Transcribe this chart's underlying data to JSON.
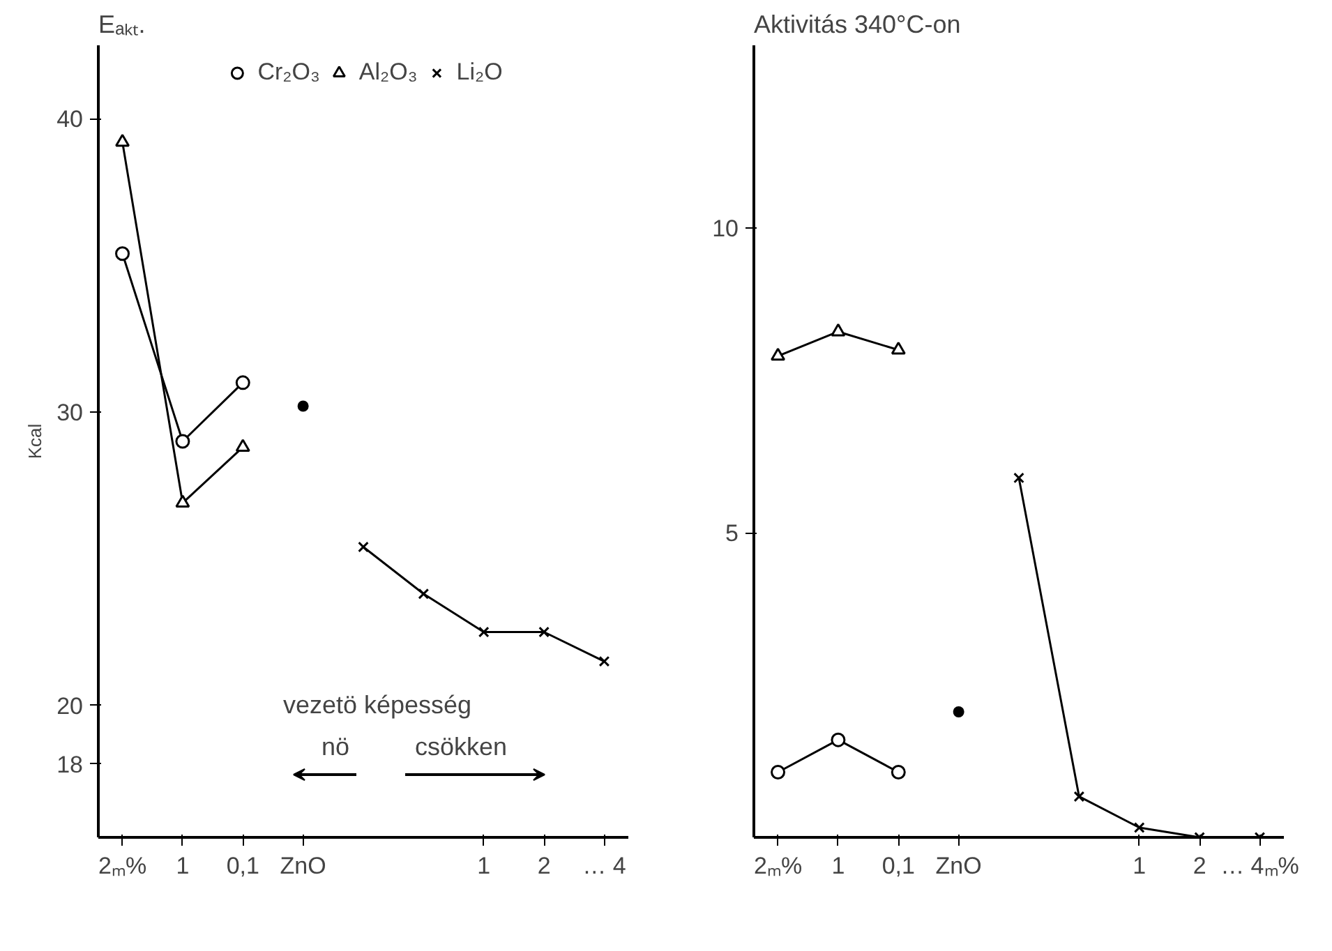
{
  "chart_data": [
    {
      "type": "line",
      "title": "Eₐₖₜ.",
      "ylabel": "Kcal",
      "categories": [
        "2ₘ%",
        "1",
        "0,1",
        "ZnO",
        null,
        null,
        "1",
        "2",
        "… 4"
      ],
      "ylim": [
        15.5,
        42.5
      ],
      "yticks": [
        18,
        20,
        30,
        40
      ],
      "series": [
        {
          "name": "Cr₂O₃",
          "color": "#000000",
          "marker": "circle",
          "values": [
            35.4,
            29.0,
            31.0,
            null,
            null,
            null,
            null,
            null,
            null
          ]
        },
        {
          "name": "Al₂O₃",
          "color": "#000000",
          "marker": "triangle",
          "values": [
            39.2,
            26.9,
            28.8,
            null,
            null,
            null,
            null,
            null,
            null
          ]
        },
        {
          "type": "scatter",
          "color": "#000000",
          "marker": "circle",
          "values": [
            null,
            null,
            null,
            30.2,
            null,
            null,
            null,
            null,
            null
          ]
        },
        {
          "name": "Li₂O",
          "color": "#000000",
          "marker": "cross",
          "values": [
            null,
            null,
            null,
            null,
            25.4,
            23.8,
            22.5,
            22.5,
            21.5
          ]
        }
      ],
      "annotations": [
        "vezetö képesség",
        "nö",
        "csökken"
      ],
      "legend": "top"
    },
    {
      "type": "line",
      "title": "Aktivitás 340°C-on",
      "categories": [
        "2ₘ%",
        "1",
        "0,1",
        "ZnO",
        null,
        null,
        "1",
        "2",
        "… 4ₘ%"
      ],
      "ylim": [
        0,
        13
      ],
      "yticks": [
        5,
        10
      ],
      "series": [
        {
          "color": "#000000",
          "marker": "circle",
          "values": [
            1.07,
            1.6,
            1.07,
            null,
            null,
            null,
            null,
            null,
            null
          ]
        },
        {
          "color": "#000000",
          "marker": "triangle",
          "values": [
            7.9,
            8.3,
            8.0,
            null,
            null,
            null,
            null,
            null,
            null
          ]
        },
        {
          "type": "scatter",
          "color": "#000000",
          "marker": "circle",
          "values": [
            null,
            null,
            null,
            2.06,
            null,
            null,
            null,
            null,
            null
          ]
        },
        {
          "color": "#000000",
          "marker": "cross",
          "values": [
            null,
            null,
            null,
            null,
            5.9,
            0.67,
            0.16,
            0.0,
            0.0
          ]
        }
      ]
    }
  ]
}
